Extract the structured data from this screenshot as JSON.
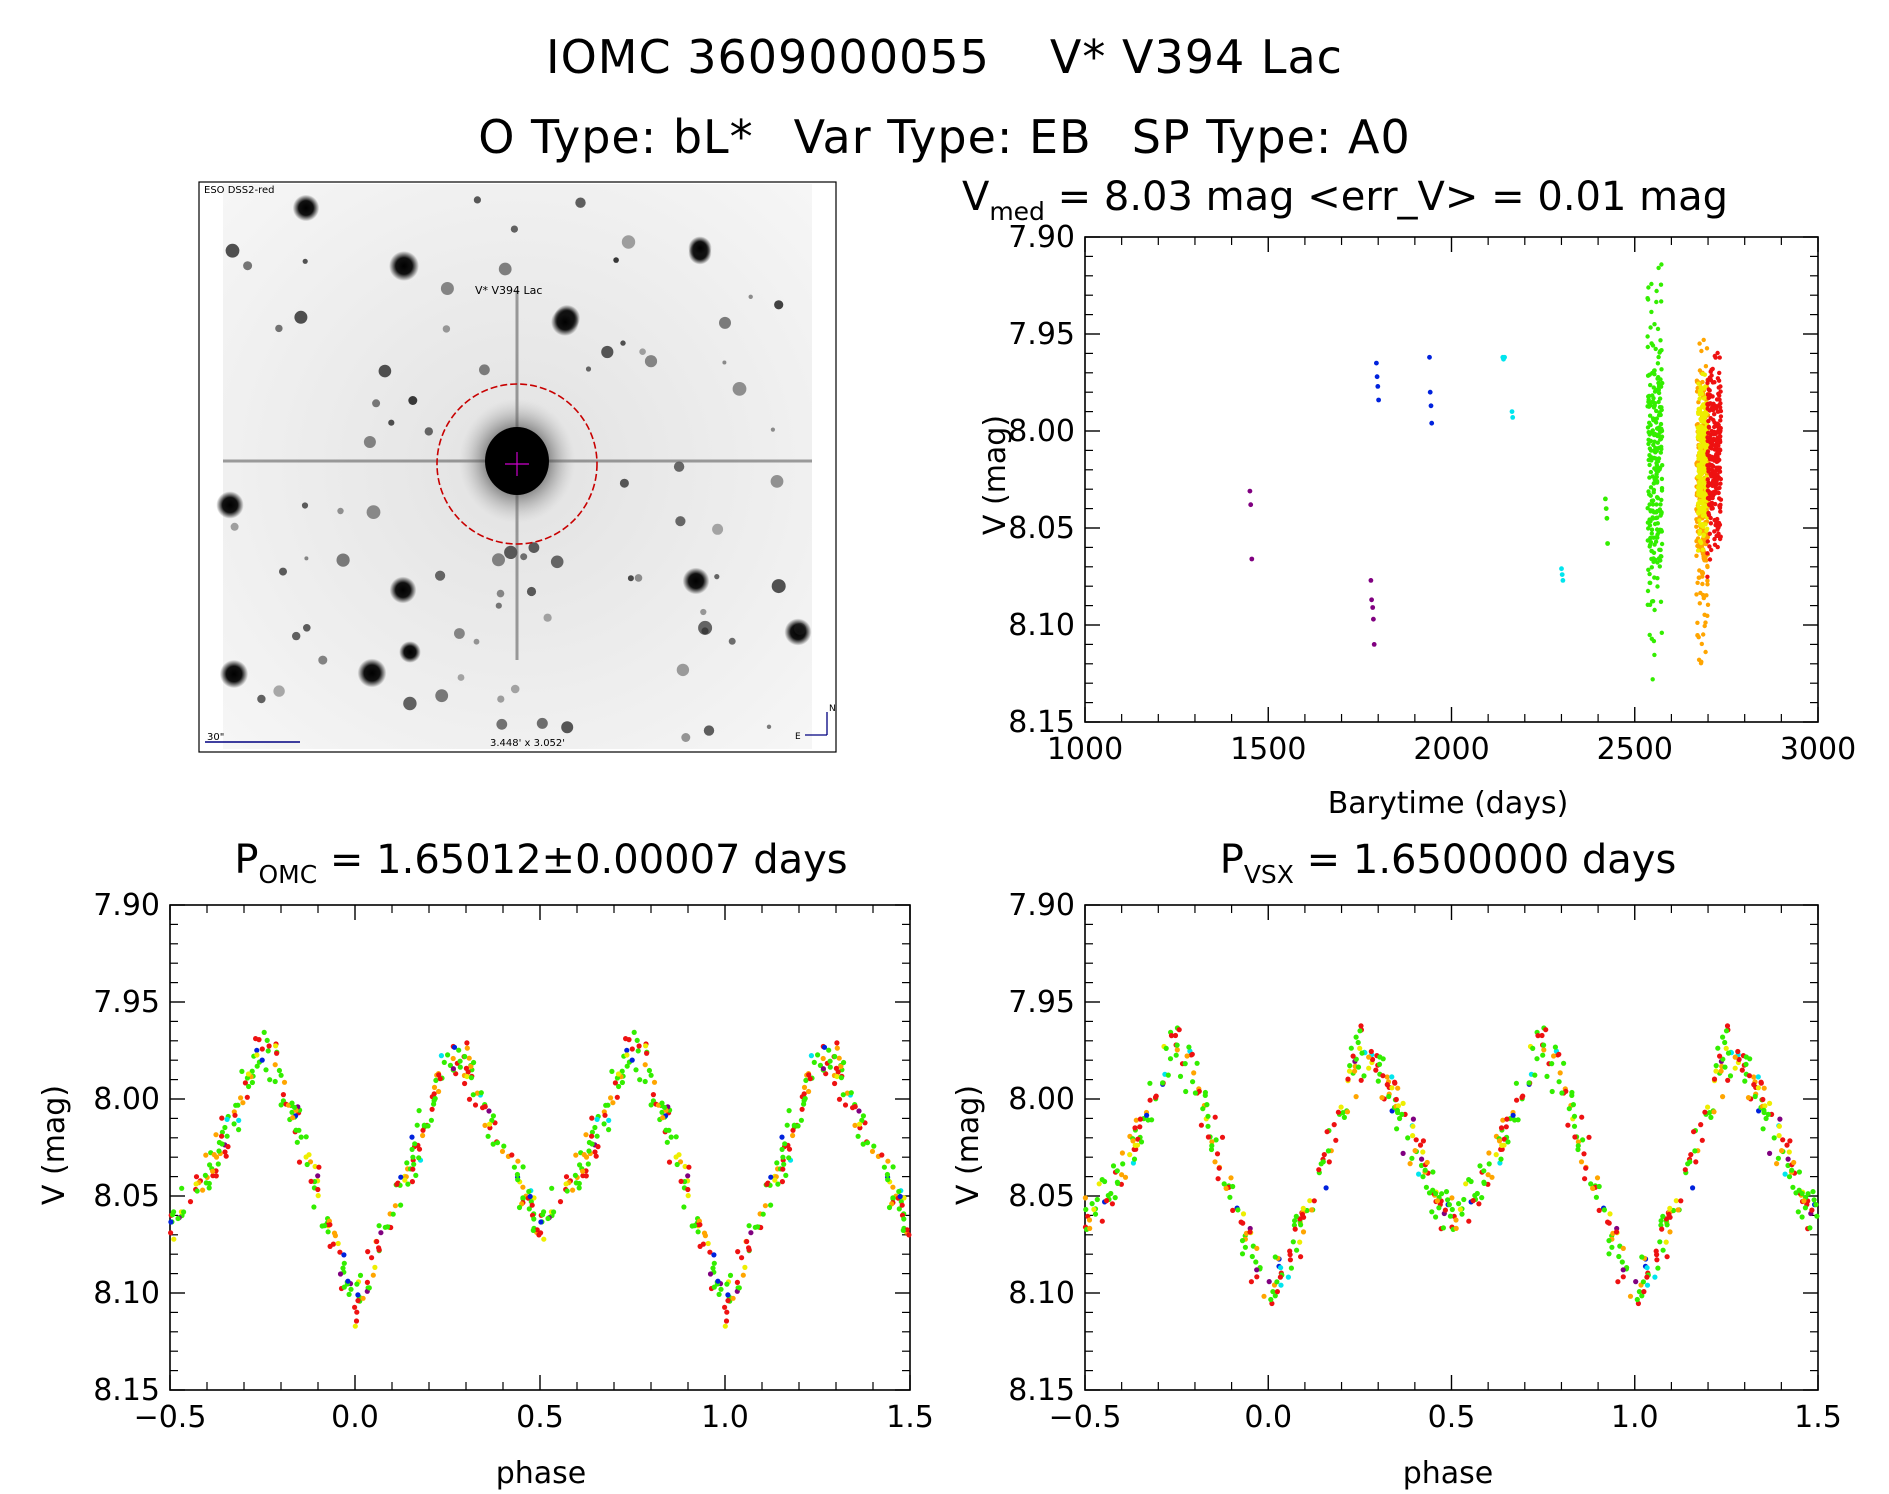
{
  "header": {
    "object_id": "IOMC 3609000055",
    "object_name": "V* V394 Lac",
    "o_type": "O Type: bL*",
    "var_type": "Var Type: EB",
    "sp_type": "SP Type: A0"
  },
  "finder_image": {
    "survey_label": "ESO DSS2-red",
    "target_label": "V* V394 Lac",
    "scale_label": "30\"",
    "size_label": "3.448' x 3.052'",
    "north_label": "N",
    "east_label": "E",
    "colors": {
      "circle": "#c80000",
      "text": "#000080"
    }
  },
  "chart_data": [
    {
      "id": "lightcurve",
      "type": "scatter",
      "title_main": "V",
      "title_sub": "med",
      "title_rest": " = 8.03 mag <err_V> = 0.01 mag",
      "xlabel": "Barytime (days)",
      "ylabel": "V (mag)",
      "xlim": [
        1000,
        3000
      ],
      "ylim": [
        8.15,
        7.9
      ],
      "y_inverted": true,
      "xticks": [
        1000,
        1500,
        2000,
        2500,
        3000
      ],
      "yticks": [
        "7.90",
        "7.95",
        "8.00",
        "8.05",
        "8.10",
        "8.15"
      ],
      "grid": false,
      "series": [
        {
          "color": "#800080",
          "x": [
            1450,
            1452,
            1455,
            1780,
            1782,
            1785,
            1787,
            1789
          ],
          "y": [
            8.031,
            8.038,
            8.066,
            8.077,
            8.087,
            8.091,
            8.097,
            8.11
          ]
        },
        {
          "color": "#0022dd",
          "x": [
            1795,
            1797,
            1799,
            1801,
            1940,
            1942,
            1944,
            1946
          ],
          "y": [
            7.965,
            7.972,
            7.977,
            7.984,
            7.962,
            7.98,
            7.987,
            7.996
          ]
        },
        {
          "color": "#00e5ee",
          "x": [
            2140,
            2142,
            2145,
            2165,
            2167,
            2300,
            2302,
            2304
          ],
          "y": [
            7.962,
            7.963,
            7.962,
            7.99,
            7.993,
            8.071,
            8.074,
            8.077
          ]
        },
        {
          "color": "#33ee00",
          "x": [
            2420,
            2422,
            2424,
            2426
          ],
          "y": [
            8.035,
            8.04,
            8.045,
            8.058
          ]
        }
      ],
      "dense_bands": [
        {
          "color": "#33ee00",
          "x_range": [
            2535,
            2575
          ],
          "y_range": [
            7.91,
            8.128
          ]
        },
        {
          "color": "#ffa500",
          "x_range": [
            2668,
            2700
          ],
          "y_range": [
            7.935,
            8.125
          ]
        },
        {
          "color": "#eeee00",
          "x_range": [
            2672,
            2698
          ],
          "y_range": [
            7.965,
            8.065
          ]
        },
        {
          "color": "#ee1111",
          "x_range": [
            2698,
            2735
          ],
          "y_range": [
            7.945,
            8.085
          ]
        }
      ]
    },
    {
      "id": "fold-omc",
      "type": "scatter",
      "title_main": "P",
      "title_sub": "OMC",
      "title_rest": " = 1.65012±0.00007 days",
      "xlabel": "phase",
      "ylabel": "V (mag)",
      "xlim": [
        -0.5,
        1.5
      ],
      "ylim": [
        8.15,
        7.9
      ],
      "y_inverted": true,
      "xticks": [
        "−0.5",
        "0.0",
        "0.5",
        "1.0",
        "1.5"
      ],
      "yticks": [
        "7.90",
        "7.95",
        "8.00",
        "8.05",
        "8.10",
        "8.15"
      ],
      "grid": false,
      "light_curve_model": {
        "phase": [
          0.0,
          0.1,
          0.2,
          0.25,
          0.3,
          0.4,
          0.5,
          0.6,
          0.7,
          0.75,
          0.8,
          0.9,
          1.0
        ],
        "mag": [
          8.105,
          8.06,
          8.005,
          7.975,
          7.985,
          8.025,
          8.065,
          8.04,
          7.995,
          7.97,
          7.99,
          8.05,
          8.105
        ]
      },
      "series_colors": [
        "#33ee00",
        "#ee1111",
        "#ffa500",
        "#eeee00",
        "#0022dd",
        "#00e5ee",
        "#800080"
      ]
    },
    {
      "id": "fold-vsx",
      "type": "scatter",
      "title_main": "P",
      "title_sub": "VSX",
      "title_rest": " = 1.6500000 days",
      "xlabel": "phase",
      "ylabel": "V (mag)",
      "xlim": [
        -0.5,
        1.5
      ],
      "ylim": [
        8.15,
        7.9
      ],
      "y_inverted": true,
      "xticks": [
        "−0.5",
        "0.0",
        "0.5",
        "1.0",
        "1.5"
      ],
      "yticks": [
        "7.90",
        "7.95",
        "8.00",
        "8.05",
        "8.10",
        "8.15"
      ],
      "grid": false,
      "light_curve_model": {
        "phase": [
          0.0,
          0.1,
          0.2,
          0.25,
          0.3,
          0.4,
          0.5,
          0.6,
          0.7,
          0.75,
          0.8,
          0.9,
          1.0
        ],
        "mag": [
          8.105,
          8.06,
          8.005,
          7.975,
          7.985,
          8.025,
          8.065,
          8.04,
          7.995,
          7.97,
          7.99,
          8.05,
          8.105
        ]
      },
      "series_colors": [
        "#33ee00",
        "#ee1111",
        "#ffa500",
        "#eeee00",
        "#0022dd",
        "#00e5ee",
        "#800080"
      ]
    }
  ]
}
